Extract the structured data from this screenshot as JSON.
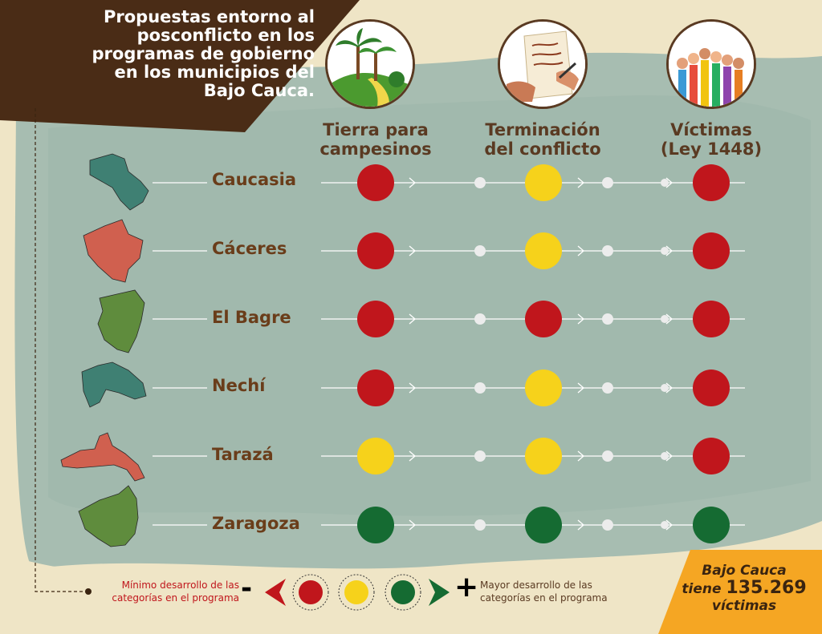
{
  "title": {
    "lines": [
      "Propuestas entorno al",
      "posconflicto en los",
      "programas de gobierno",
      "en los municipios del",
      "Bajo Cauca."
    ]
  },
  "columns": [
    {
      "icon": "palm-tree-landscape-icon",
      "label_lines": [
        "Tierra para",
        "campesinos"
      ]
    },
    {
      "icon": "signing-document-icon",
      "label_lines": [
        "Terminación",
        "del conflicto"
      ]
    },
    {
      "icon": "raised-hands-icon",
      "label_lines": [
        "Víctimas",
        "(Ley 1448)"
      ]
    }
  ],
  "rows": [
    {
      "name": "Caucasia",
      "map_color": "#3f8073",
      "values": [
        "red",
        "yellow",
        "red"
      ]
    },
    {
      "name": "Cáceres",
      "map_color": "#d0604f",
      "values": [
        "red",
        "yellow",
        "red"
      ]
    },
    {
      "name": "El Bagre",
      "map_color": "#5f8c3d",
      "values": [
        "red",
        "red",
        "red"
      ]
    },
    {
      "name": "Nechí",
      "map_color": "#3f8073",
      "values": [
        "red",
        "yellow",
        "red"
      ]
    },
    {
      "name": "Tarazá",
      "map_color": "#d0604f",
      "values": [
        "yellow",
        "yellow",
        "red"
      ]
    },
    {
      "name": "Zaragoza",
      "map_color": "#5f8c3d",
      "values": [
        "green",
        "green",
        "green"
      ]
    }
  ],
  "status_colors": {
    "red": "#c0161c",
    "yellow": "#f6d21b",
    "green": "#156b32"
  },
  "legend": {
    "min_lines": [
      "Mínimo desarrollo de las",
      "categorías en el programa"
    ],
    "max_lines": [
      "Mayor desarrollo de las",
      "categorías en el programa"
    ],
    "minus_sign": "-",
    "plus_sign": "+"
  },
  "victims_box": {
    "line1": "Bajo Cauca",
    "line2_prefix": "tiene",
    "count": "135.269",
    "line3": "víctimas"
  }
}
